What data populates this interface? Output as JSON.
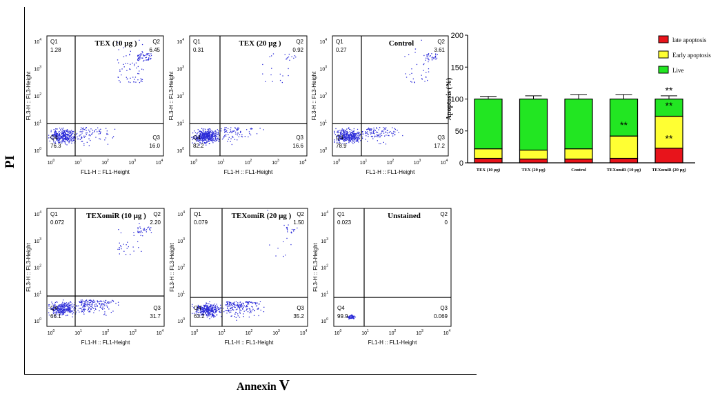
{
  "axis": {
    "y_title": "PI",
    "x_title_prefix": "Annexin",
    "x_title_suffix": "V"
  },
  "panel_axis": {
    "xlabel": "FL1-H :: FL1-Height",
    "ylabel": "FL3-H :: FL3-Height",
    "ticks": [
      "10",
      "10",
      "10",
      "10",
      "10"
    ],
    "exps": [
      "0",
      "1",
      "2",
      "3",
      "4"
    ]
  },
  "panels": [
    {
      "title": "TEX (10 µg )",
      "q1": "1.28",
      "q2": "6.45",
      "q3": "16.0",
      "q4": "76.3"
    },
    {
      "title": "TEX (20 µg )",
      "q1": "0.31",
      "q2": "0.92",
      "q3": "16.6",
      "q4": "82.2"
    },
    {
      "title": "Control",
      "q1": "0.27",
      "q2": "3.61",
      "q3": "17.2",
      "q4": "78.9"
    },
    {
      "title": "TEXomiR (10 µg )",
      "q1": "0.072",
      "q2": "2.20",
      "q3": "31.7",
      "q4": "66.1"
    },
    {
      "title": "TEXomiR (20 µg )",
      "q1": "0.079",
      "q2": "1.50",
      "q3": "35.2",
      "q4": "63.2"
    },
    {
      "title": "Unstained",
      "q1": "0.023",
      "q2": "0",
      "q3": "0.069",
      "q4": "99.9"
    }
  ],
  "quadrant_names": {
    "q1": "Q1",
    "q2": "Q2",
    "q3": "Q3",
    "q4": "Q4"
  },
  "chart_data": {
    "type": "bar",
    "stacked": true,
    "ylabel": "Apoptosis (%)",
    "ylim": [
      0,
      200
    ],
    "yticks": [
      "0",
      "50",
      "100",
      "150",
      "200"
    ],
    "categories": [
      "TEX (10 µg)",
      "TEX (20 µg)",
      "Control",
      "TEXomiR (10 µg)",
      "TEXomiR (20 µg)"
    ],
    "series": [
      {
        "name": "late apoptosis",
        "color": "#e8141b",
        "values": [
          7,
          6,
          6,
          7,
          23
        ],
        "err": [
          2,
          2,
          2,
          3,
          7
        ]
      },
      {
        "name": "Early apoptosis",
        "color": "#ffff33",
        "values": [
          15,
          14,
          16,
          35,
          50
        ],
        "err": [
          2,
          3,
          3,
          9,
          8
        ]
      },
      {
        "name": "Live",
        "color": "#22e622",
        "values": [
          78,
          80,
          78,
          58,
          27
        ],
        "err": [
          4,
          5,
          7,
          7,
          5
        ]
      }
    ],
    "significance": {
      "marker": "**"
    },
    "legend": "top-right"
  }
}
